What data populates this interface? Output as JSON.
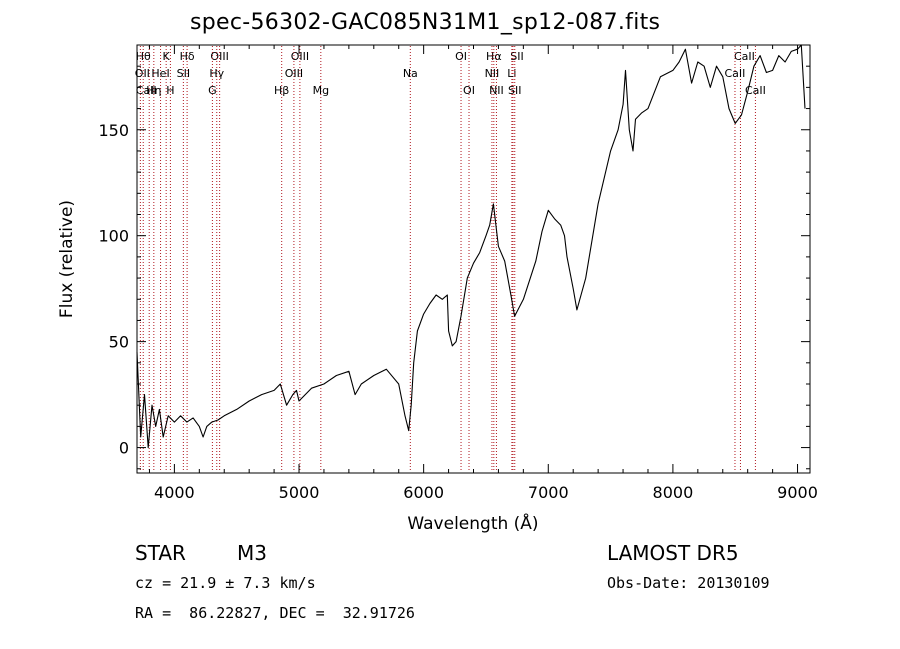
{
  "chart_data": {
    "type": "line",
    "title": "spec-56302-GAC085N31M1_sp12-087.fits",
    "xlabel": "Wavelength (Å)",
    "ylabel": "Flux (relative)",
    "xlim": [
      3700,
      9100
    ],
    "ylim": [
      -12,
      190
    ],
    "xticks": [
      4000,
      5000,
      6000,
      7000,
      8000,
      9000
    ],
    "yticks": [
      0,
      50,
      100,
      150
    ],
    "grid": false,
    "series": [
      {
        "x": [
          3700,
          3730,
          3760,
          3790,
          3820,
          3850,
          3880,
          3910,
          3950,
          4000,
          4050,
          4100,
          4150,
          4200,
          4230,
          4260,
          4300,
          4350,
          4400,
          4500,
          4600,
          4700,
          4800,
          4850,
          4900,
          4950,
          4980,
          5000,
          5100,
          5200,
          5300,
          5400,
          5450,
          5500,
          5600,
          5700,
          5800,
          5850,
          5880,
          5900,
          5920,
          5950,
          6000,
          6050,
          6100,
          6150,
          6190,
          6200,
          6230,
          6260,
          6300,
          6350,
          6400,
          6450,
          6500,
          6530,
          6560,
          6600,
          6650,
          6700,
          6730,
          6800,
          6900,
          6950,
          7000,
          7050,
          7100,
          7130,
          7150,
          7200,
          7230,
          7300,
          7400,
          7500,
          7560,
          7600,
          7620,
          7650,
          7680,
          7700,
          7750,
          7800,
          7900,
          8000,
          8050,
          8100,
          8150,
          8200,
          8250,
          8300,
          8350,
          8400,
          8450,
          8500,
          8550,
          8600,
          8650,
          8700,
          8750,
          8800,
          8850,
          8900,
          8950,
          9000,
          9030,
          9060
        ],
        "y": [
          45,
          5,
          25,
          0,
          20,
          10,
          18,
          5,
          15,
          12,
          15,
          12,
          14,
          10,
          5,
          10,
          12,
          13,
          15,
          18,
          22,
          25,
          27,
          30,
          20,
          25,
          27,
          22,
          28,
          30,
          34,
          36,
          25,
          30,
          34,
          37,
          30,
          15,
          8,
          20,
          40,
          55,
          63,
          68,
          72,
          70,
          72,
          55,
          48,
          50,
          62,
          80,
          87,
          92,
          100,
          105,
          115,
          95,
          88,
          72,
          62,
          70,
          88,
          102,
          112,
          108,
          105,
          100,
          90,
          75,
          65,
          80,
          115,
          140,
          150,
          162,
          178,
          150,
          140,
          155,
          158,
          160,
          175,
          178,
          182,
          188,
          172,
          182,
          180,
          170,
          180,
          175,
          160,
          153,
          157,
          168,
          180,
          185,
          177,
          178,
          185,
          182,
          187,
          188,
          190,
          160
        ]
      }
    ],
    "lines": [
      {
        "label": "Hθ",
        "wl": 3798,
        "row": 0,
        "dx": -6
      },
      {
        "label": "K",
        "wl": 3934,
        "row": 0
      },
      {
        "label": "Hδ",
        "wl": 4102,
        "row": 0
      },
      {
        "label": "OIII",
        "wl": 4363,
        "row": 0
      },
      {
        "label": "OIII",
        "wl": 5007,
        "row": 0
      },
      {
        "label": "OI",
        "wl": 6300,
        "row": 0
      },
      {
        "label": "Hα",
        "wl": 6563,
        "row": 0
      },
      {
        "label": "SII",
        "wl": 6717,
        "row": 0,
        "dx": 4
      },
      {
        "label": "CaII",
        "wl": 8542,
        "row": 0,
        "dx": 4
      },
      {
        "label": "OII",
        "wl": 3727,
        "row": 1,
        "dx": 2
      },
      {
        "label": "HeI",
        "wl": 3889,
        "row": 1
      },
      {
        "label": "SII",
        "wl": 4072,
        "row": 1
      },
      {
        "label": "Hγ",
        "wl": 4340,
        "row": 1
      },
      {
        "label": "OIII",
        "wl": 4959,
        "row": 1
      },
      {
        "label": "Na",
        "wl": 5893,
        "row": 1
      },
      {
        "label": "NII",
        "wl": 6548,
        "row": 1
      },
      {
        "label": "Li",
        "wl": 6708,
        "row": 1
      },
      {
        "label": "CaII",
        "wl": 8498,
        "row": 1
      },
      {
        "label": "CaII",
        "wl": 3750,
        "row": 2,
        "dx": 3
      },
      {
        "label": "Hη",
        "wl": 3835,
        "row": 2
      },
      {
        "label": "H",
        "wl": 3968,
        "row": 2
      },
      {
        "label": "G",
        "wl": 4305,
        "row": 2
      },
      {
        "label": "Hβ",
        "wl": 4861,
        "row": 2
      },
      {
        "label": "Mg",
        "wl": 5175,
        "row": 2
      },
      {
        "label": "OI",
        "wl": 6364,
        "row": 2
      },
      {
        "label": "NII",
        "wl": 6584,
        "row": 2
      },
      {
        "label": "SII",
        "wl": 6731,
        "row": 2
      },
      {
        "label": "CaII",
        "wl": 8662,
        "row": 2
      }
    ]
  },
  "info": {
    "object_class": "STAR",
    "subclass": "M3",
    "survey": "LAMOST DR5",
    "cz": "cz = 21.9 ± 7.3 km/s",
    "obs_date": "Obs-Date: 20130109",
    "radec": "RA =  86.22827, DEC =  32.91726"
  }
}
